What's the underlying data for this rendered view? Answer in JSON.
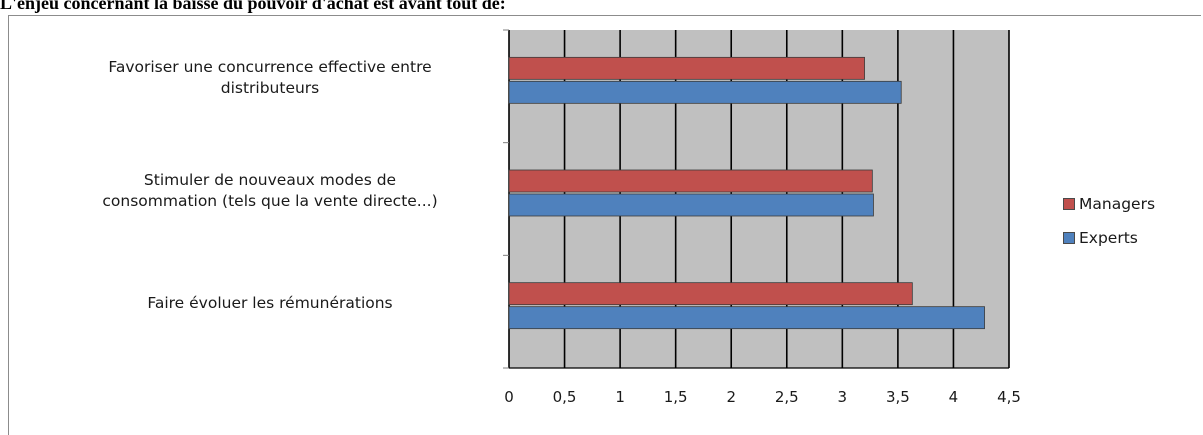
{
  "title": "L'enjeu concernant la baisse du pouvoir d'achat est avant tout de:",
  "chart_data": {
    "type": "bar",
    "orientation": "horizontal",
    "categories": [
      [
        "Favoriser une concurrence effective entre",
        "distributeurs"
      ],
      [
        "Stimuler de nouveaux modes de",
        "consommation (tels que la vente directe...)"
      ],
      [
        "Faire évoluer les rémunérations"
      ]
    ],
    "series": [
      {
        "name": "Managers",
        "color": "#c0504d",
        "values": [
          3.2,
          3.27,
          3.63
        ]
      },
      {
        "name": "Experts",
        "color": "#4f81bd",
        "values": [
          3.53,
          3.28,
          4.28
        ]
      }
    ],
    "xlim": [
      0,
      4.5
    ],
    "xticks": [
      "0",
      "0,5",
      "1",
      "1,5",
      "2",
      "2,5",
      "3",
      "3,5",
      "4",
      "4,5"
    ],
    "grid": true,
    "plot_background": "#c0c0c0",
    "legend_position": "right"
  }
}
